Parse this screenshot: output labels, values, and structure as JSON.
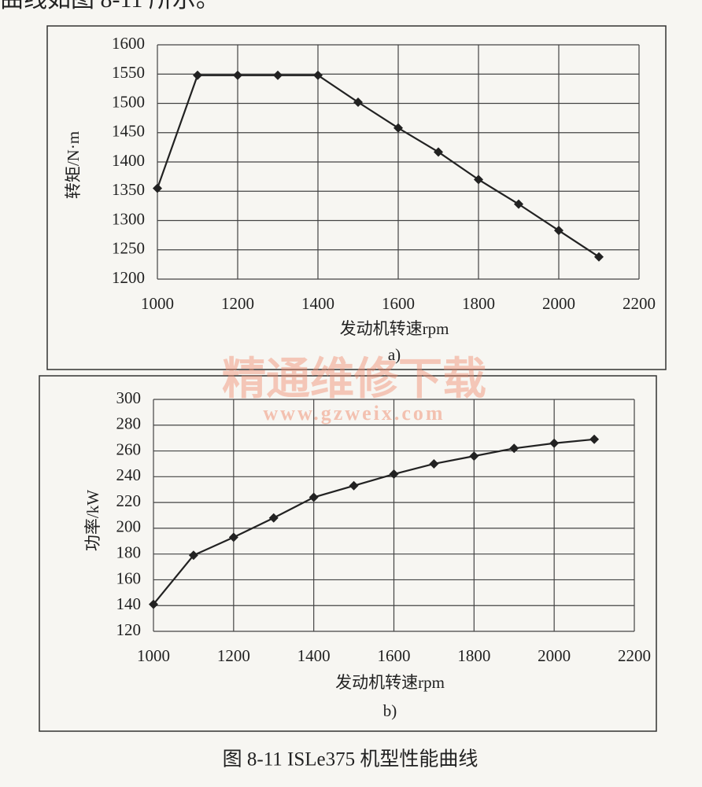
{
  "header_text": "曲线如图 8-11 所示。",
  "chart_data": [
    {
      "type": "line",
      "label": "a)",
      "y_label": "转矩/N·m",
      "x_label": "发动机转速rpm",
      "x": [
        1000,
        1100,
        1200,
        1300,
        1400,
        1500,
        1600,
        1700,
        1800,
        1900,
        2000,
        2100
      ],
      "values": [
        1355,
        1548,
        1548,
        1548,
        1548,
        1502,
        1458,
        1417,
        1370,
        1328,
        1283,
        1238
      ],
      "color": "#222222",
      "marker": "diamond",
      "xlim": [
        1000,
        2200
      ],
      "xticks": [
        1000,
        1200,
        1400,
        1600,
        1800,
        2000,
        2200
      ],
      "ylim": [
        1200,
        1600
      ],
      "yticks": [
        1200,
        1250,
        1300,
        1350,
        1400,
        1450,
        1500,
        1550,
        1600
      ],
      "grid": true
    },
    {
      "type": "line",
      "label": "b)",
      "y_label": "功率/kW",
      "x_label": "发动机转速rpm",
      "x": [
        1000,
        1100,
        1200,
        1300,
        1400,
        1500,
        1600,
        1700,
        1800,
        1900,
        2000,
        2100
      ],
      "values": [
        141,
        179,
        193,
        208,
        224,
        233,
        242,
        250,
        256,
        262,
        266,
        269
      ],
      "color": "#222222",
      "marker": "diamond",
      "xlim": [
        1000,
        2200
      ],
      "xticks": [
        1000,
        1200,
        1400,
        1600,
        1800,
        2000,
        2200
      ],
      "ylim": [
        120,
        300
      ],
      "yticks": [
        120,
        140,
        160,
        180,
        200,
        220,
        240,
        260,
        280,
        300
      ],
      "grid": true
    }
  ],
  "watermark": {
    "title": "精通维修下载",
    "url": "www.gzweix.com"
  },
  "caption": "图 8-11   ISLe375 机型性能曲线"
}
